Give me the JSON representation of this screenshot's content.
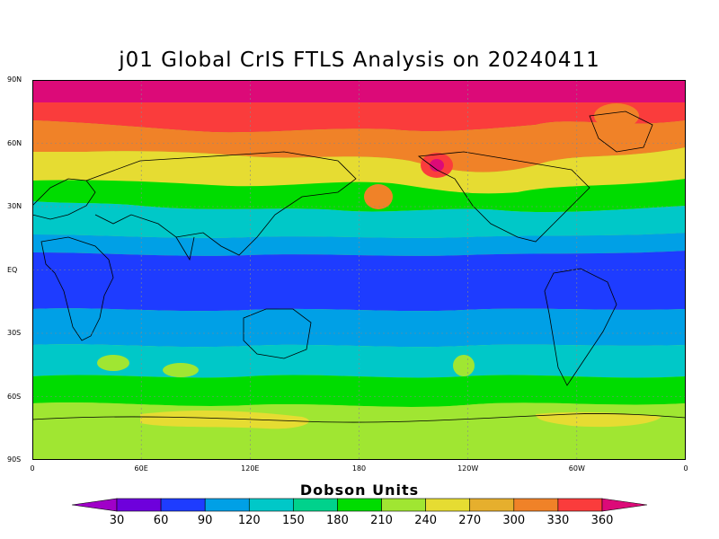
{
  "title": "j01 Global CrIS FTLS Analysis on 20240411",
  "lat_ticks": [
    {
      "label": "90N",
      "lat": 90
    },
    {
      "label": "60N",
      "lat": 60
    },
    {
      "label": "30N",
      "lat": 30
    },
    {
      "label": "EQ",
      "lat": 0
    },
    {
      "label": "30S",
      "lat": -30
    },
    {
      "label": "60S",
      "lat": -60
    },
    {
      "label": "90S",
      "lat": -90
    }
  ],
  "lon_ticks": [
    {
      "label": "0",
      "lon": 0
    },
    {
      "label": "60E",
      "lon": 60
    },
    {
      "label": "120E",
      "lon": 120
    },
    {
      "label": "180",
      "lon": 180
    },
    {
      "label": "120W",
      "lon": 240
    },
    {
      "label": "60W",
      "lon": 300
    },
    {
      "label": "0",
      "lon": 360
    }
  ],
  "legend": {
    "title": "Dobson Units",
    "levels": [
      "30",
      "60",
      "90",
      "120",
      "150",
      "180",
      "210",
      "240",
      "270",
      "300",
      "330",
      "360"
    ],
    "colors": [
      "#a000c8",
      "#6e00dc",
      "#1e3cff",
      "#00a0e6",
      "#00c8c8",
      "#00d28c",
      "#00dc00",
      "#a0e632",
      "#e6dc32",
      "#e6af2d",
      "#f08228",
      "#fa3c3c",
      "#dc0a78"
    ]
  }
}
